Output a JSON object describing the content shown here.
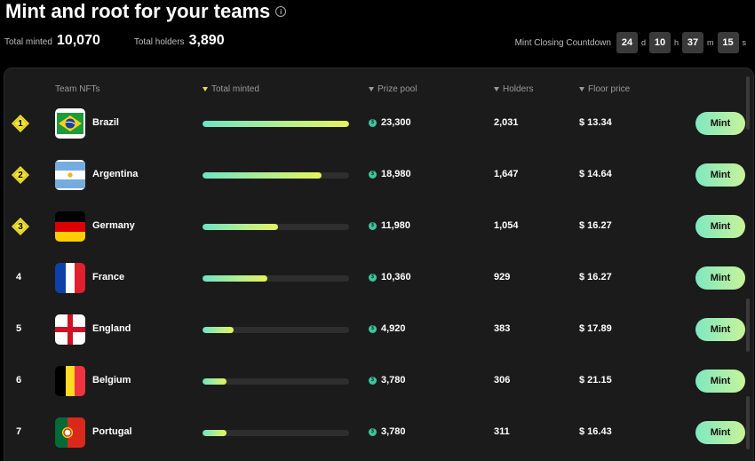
{
  "header": {
    "title": "Mint and root for your teams",
    "info_icon": "i",
    "total_minted_label": "Total minted",
    "total_minted_value": "10,070",
    "total_holders_label": "Total holders",
    "total_holders_value": "3,890"
  },
  "countdown": {
    "label": "Mint Closing Countdown",
    "days": "24",
    "days_unit": "d",
    "hours": "10",
    "hours_unit": "h",
    "minutes": "37",
    "minutes_unit": "m",
    "seconds": "15",
    "seconds_unit": "s"
  },
  "table": {
    "columns": {
      "team": "Team NFTs",
      "minted": "Total minted",
      "prize": "Prize pool",
      "holders": "Holders",
      "floor": "Floor price"
    },
    "sort_active_color": "#e6e23a",
    "rows": [
      {
        "rank": "1",
        "team": "Brazil",
        "flag": "brazil-flag-icon",
        "minted_fraction": 1.0,
        "prize": "23,300",
        "holders": "2,031",
        "floor": "$ 13.34",
        "action": "Mint"
      },
      {
        "rank": "2",
        "team": "Argentina",
        "flag": "argentina-flag-icon",
        "minted_fraction": 0.815,
        "prize": "18,980",
        "holders": "1,647",
        "floor": "$ 14.64",
        "action": "Mint"
      },
      {
        "rank": "3",
        "team": "Germany",
        "flag": "germany-flag-icon",
        "minted_fraction": 0.514,
        "prize": "11,980",
        "holders": "1,054",
        "floor": "$ 16.27",
        "action": "Mint"
      },
      {
        "rank": "4",
        "team": "France",
        "flag": "france-flag-icon",
        "minted_fraction": 0.445,
        "prize": "10,360",
        "holders": "929",
        "floor": "$ 16.27",
        "action": "Mint"
      },
      {
        "rank": "5",
        "team": "England",
        "flag": "england-flag-icon",
        "minted_fraction": 0.211,
        "prize": "4,920",
        "holders": "383",
        "floor": "$ 17.89",
        "action": "Mint"
      },
      {
        "rank": "6",
        "team": "Belgium",
        "flag": "belgium-flag-icon",
        "minted_fraction": 0.162,
        "prize": "3,780",
        "holders": "306",
        "floor": "$ 21.15",
        "action": "Mint"
      },
      {
        "rank": "7",
        "team": "Portugal",
        "flag": "portugal-flag-icon",
        "minted_fraction": 0.162,
        "prize": "3,780",
        "holders": "311",
        "floor": "$ 16.43",
        "action": "Mint"
      }
    ]
  },
  "colors": {
    "badge_gold": "#f2e33a",
    "coin": "#3fc59c",
    "mint_button_start": "#7fe8c0",
    "mint_button_end": "#c8f39a"
  }
}
